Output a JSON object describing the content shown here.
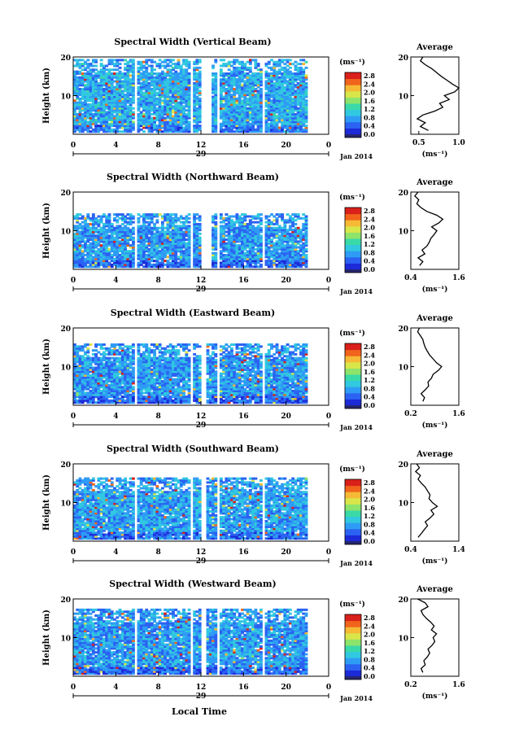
{
  "figure": {
    "x_axis_label": "Local Time",
    "month_label": "Jan 2014"
  },
  "colorbar": {
    "unit": "(ms⁻¹)",
    "tick_labels": [
      "2.8",
      "2.4",
      "2.0",
      "1.6",
      "1.2",
      "0.8",
      "0.4",
      "0.0"
    ],
    "colors": [
      "#26266e",
      "#1c2ad8",
      "#2b62f2",
      "#2e9cf4",
      "#31c8e0",
      "#3ad9a8",
      "#8ee36b",
      "#d9e64a",
      "#f6b935",
      "#f0641c",
      "#d9201a"
    ]
  },
  "chart_data": [
    {
      "type": "heatmap",
      "title": "Spectral Width (Vertical Beam)",
      "ylabel": "Height (km)",
      "y_ticks": [
        "20",
        "10"
      ],
      "x_ticks": [
        "0",
        "4",
        "8",
        "12",
        "16",
        "20",
        "0"
      ],
      "day_label": "29",
      "xlim": [
        0,
        24
      ],
      "ylim": [
        0,
        20
      ],
      "value_range": [
        0.0,
        2.8
      ],
      "data_top_km": 19.5,
      "data_gaps_hours": [
        [
          5.7,
          6.0
        ],
        [
          10.9,
          11.3
        ],
        [
          12.1,
          12.9
        ],
        [
          13.4,
          13.7
        ],
        [
          17.7,
          18.1
        ]
      ],
      "data_end_hour": 22.0,
      "typical_width": 0.8,
      "profile": {
        "title": "Average",
        "xlabel": "(ms⁻¹)",
        "xlim": [
          0.4,
          1.0
        ],
        "x_ticks": [
          "0.5",
          "1.0"
        ],
        "y_ticks": [
          "20",
          "10"
        ],
        "height_km": [
          1,
          2,
          3,
          4,
          5,
          6,
          7,
          8,
          9,
          10,
          11,
          12,
          13,
          14,
          15,
          16,
          17,
          18,
          19,
          20
        ],
        "values": [
          0.62,
          0.52,
          0.58,
          0.48,
          0.55,
          0.7,
          0.8,
          0.76,
          0.88,
          0.82,
          0.95,
          1.0,
          0.92,
          0.85,
          0.78,
          0.72,
          0.66,
          0.58,
          0.52,
          0.55
        ]
      }
    },
    {
      "type": "heatmap",
      "title": "Spectral Width (Northward Beam)",
      "ylabel": "Height (km)",
      "y_ticks": [
        "20",
        "10"
      ],
      "x_ticks": [
        "0",
        "4",
        "8",
        "12",
        "16",
        "20",
        "0"
      ],
      "day_label": "29",
      "xlim": [
        0,
        24
      ],
      "ylim": [
        0,
        20
      ],
      "value_range": [
        0.0,
        2.8
      ],
      "data_top_km": 14.5,
      "data_gaps_hours": [
        [
          5.7,
          6.0
        ],
        [
          10.9,
          11.3
        ],
        [
          12.1,
          12.9
        ],
        [
          13.4,
          13.7
        ],
        [
          17.7,
          18.1
        ]
      ],
      "data_end_hour": 22.0,
      "typical_width": 0.7,
      "profile": {
        "title": "Average",
        "xlabel": "(ms⁻¹)",
        "xlim": [
          0.4,
          1.6
        ],
        "x_ticks": [
          "0.4",
          "1.6"
        ],
        "y_ticks": [
          "20",
          "10"
        ],
        "height_km": [
          1,
          2,
          3,
          4,
          5,
          6,
          7,
          8,
          9,
          10,
          11,
          12,
          13,
          14,
          15,
          16,
          17,
          18,
          19,
          20
        ],
        "values": [
          0.62,
          0.7,
          0.58,
          0.75,
          0.68,
          0.8,
          0.86,
          0.9,
          0.98,
          1.05,
          0.92,
          1.1,
          1.2,
          1.05,
          0.8,
          0.65,
          0.55,
          0.6,
          0.5,
          0.58
        ]
      }
    },
    {
      "type": "heatmap",
      "title": "Spectral Width (Eastward Beam)",
      "ylabel": "Height (km)",
      "y_ticks": [
        "20",
        "10"
      ],
      "x_ticks": [
        "0",
        "4",
        "8",
        "12",
        "16",
        "20",
        "0"
      ],
      "day_label": "29",
      "xlim": [
        0,
        24
      ],
      "ylim": [
        0,
        20
      ],
      "value_range": [
        0.0,
        2.8
      ],
      "data_top_km": 16.0,
      "data_gaps_hours": [
        [
          5.7,
          6.0
        ],
        [
          10.9,
          11.3
        ],
        [
          12.1,
          12.6
        ],
        [
          13.4,
          13.7
        ],
        [
          17.7,
          18.1
        ]
      ],
      "data_end_hour": 22.0,
      "typical_width": 0.7,
      "profile": {
        "title": "Average",
        "xlabel": "(ms⁻¹)",
        "xlim": [
          0.2,
          1.6
        ],
        "x_ticks": [
          "0.2",
          "1.6"
        ],
        "y_ticks": [
          "20",
          "10"
        ],
        "height_km": [
          1,
          2,
          3,
          4,
          5,
          6,
          7,
          8,
          9,
          10,
          11,
          12,
          13,
          14,
          15,
          16,
          17,
          18,
          19,
          20
        ],
        "values": [
          0.55,
          0.6,
          0.5,
          0.62,
          0.72,
          0.7,
          0.8,
          0.85,
          1.0,
          1.1,
          0.95,
          0.85,
          0.75,
          0.68,
          0.62,
          0.58,
          0.55,
          0.48,
          0.4,
          0.45
        ]
      }
    },
    {
      "type": "heatmap",
      "title": "Spectral Width (Southward Beam)",
      "ylabel": "Height (km)",
      "y_ticks": [
        "20",
        "10"
      ],
      "x_ticks": [
        "0",
        "4",
        "8",
        "12",
        "16",
        "20",
        "0"
      ],
      "day_label": "29",
      "xlim": [
        0,
        24
      ],
      "ylim": [
        0,
        20
      ],
      "value_range": [
        0.0,
        2.8
      ],
      "data_top_km": 16.5,
      "data_gaps_hours": [
        [
          5.7,
          6.0
        ],
        [
          10.9,
          11.3
        ],
        [
          12.1,
          12.6
        ],
        [
          13.4,
          13.7
        ],
        [
          17.7,
          18.1
        ]
      ],
      "data_end_hour": 22.0,
      "typical_width": 0.75,
      "profile": {
        "title": "Average",
        "xlabel": "(ms⁻¹)",
        "xlim": [
          0.4,
          1.4
        ],
        "x_ticks": [
          "0.4",
          "1.4"
        ],
        "y_ticks": [
          "20",
          "10"
        ],
        "height_km": [
          1,
          2,
          3,
          4,
          5,
          6,
          7,
          8,
          9,
          10,
          11,
          12,
          13,
          14,
          15,
          16,
          17,
          18,
          19,
          20
        ],
        "values": [
          0.55,
          0.62,
          0.68,
          0.75,
          0.7,
          0.8,
          0.88,
          0.82,
          0.95,
          0.85,
          0.78,
          0.8,
          0.75,
          0.7,
          0.62,
          0.55,
          0.6,
          0.5,
          0.58,
          0.52
        ]
      }
    },
    {
      "type": "heatmap",
      "title": "Spectral Width (Westward Beam)",
      "ylabel": "Height (km)",
      "y_ticks": [
        "20",
        "10"
      ],
      "x_ticks": [
        "0",
        "4",
        "8",
        "12",
        "16",
        "20",
        "0"
      ],
      "day_label": "29",
      "xlim": [
        0,
        24
      ],
      "ylim": [
        0,
        20
      ],
      "value_range": [
        0.0,
        2.8
      ],
      "data_top_km": 17.5,
      "data_gaps_hours": [
        [
          5.7,
          6.0
        ],
        [
          10.9,
          11.3
        ],
        [
          12.1,
          12.6
        ],
        [
          13.4,
          13.7
        ],
        [
          17.7,
          18.1
        ]
      ],
      "data_end_hour": 22.0,
      "typical_width": 0.7,
      "profile": {
        "title": "Average",
        "xlabel": "(ms⁻¹)",
        "xlim": [
          0.2,
          1.6
        ],
        "x_ticks": [
          "0.2",
          "1.6"
        ],
        "y_ticks": [
          "20",
          "10"
        ],
        "height_km": [
          1,
          2,
          3,
          4,
          5,
          6,
          7,
          8,
          9,
          10,
          11,
          12,
          13,
          14,
          15,
          16,
          17,
          18,
          19,
          20
        ],
        "values": [
          0.55,
          0.5,
          0.62,
          0.58,
          0.68,
          0.75,
          0.7,
          0.82,
          0.9,
          0.85,
          0.95,
          0.8,
          0.88,
          0.78,
          0.65,
          0.55,
          0.5,
          0.7,
          0.62,
          0.4
        ]
      }
    }
  ]
}
